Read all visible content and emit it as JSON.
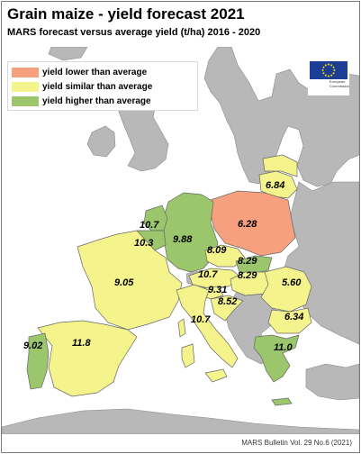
{
  "title": "Grain maize - yield forecast 2021",
  "subtitle": "MARS forecast versus average yield (t/ha) 2016 - 2020",
  "legend": [
    {
      "label": "yield lower than average",
      "color": "#f7a07e"
    },
    {
      "label": "yield similar than average",
      "color": "#f5f38c"
    },
    {
      "label": "yield higher than average",
      "color": "#9bc66b"
    }
  ],
  "logo": {
    "text_line1": "European",
    "text_line2": "Commission",
    "flag_color": "#1c3f95",
    "star_color": "#ffde00"
  },
  "footer": "MARS Bulletin Vol. 29 No.6 (2021)",
  "colors": {
    "sea": "#ffffff",
    "non_eu_land": "#b8b8b8",
    "border": "#666666"
  },
  "values": {
    "lithuania": "6.84",
    "poland": "6.28",
    "netherlands": "10.7",
    "belgium": "10.3",
    "germany": "9.88",
    "czechia": "8.09",
    "slovakia": "8.29",
    "austria": "10.7",
    "hungary": "8.29",
    "slovenia": "9.31",
    "croatia": "8.52",
    "romania": "5.60",
    "france": "9.05",
    "italy": "10.7",
    "bulgaria": "6.34",
    "portugal": "9.02",
    "spain": "11.8",
    "greece": "11.0"
  }
}
